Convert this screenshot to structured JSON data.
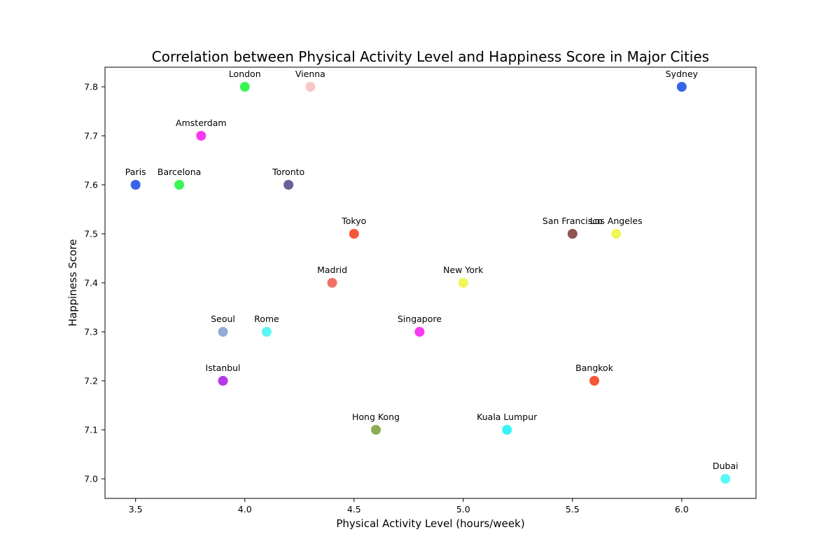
{
  "chart_data": {
    "type": "scatter",
    "title": "Correlation between Physical Activity Level and Happiness Score in Major Cities",
    "xlabel": "Physical Activity Level (hours/week)",
    "ylabel": "Happiness Score",
    "xlim": [
      3.36,
      6.34
    ],
    "ylim": [
      6.96,
      7.84
    ],
    "xticks": [
      "3.5",
      "4.0",
      "4.5",
      "5.0",
      "5.5",
      "6.0"
    ],
    "yticks": [
      "7.0",
      "7.1",
      "7.2",
      "7.3",
      "7.4",
      "7.5",
      "7.6",
      "7.7",
      "7.8"
    ],
    "grid": false,
    "points": [
      {
        "label": "Paris",
        "x": 3.5,
        "y": 7.6,
        "color": "#2e5be8"
      },
      {
        "label": "Barcelona",
        "x": 3.7,
        "y": 7.6,
        "color": "#2ef64a"
      },
      {
        "label": "Amsterdam",
        "x": 3.8,
        "y": 7.7,
        "color": "#f92ef0"
      },
      {
        "label": "Seoul",
        "x": 3.9,
        "y": 7.3,
        "color": "#8fa7d2"
      },
      {
        "label": "Istanbul",
        "x": 3.9,
        "y": 7.2,
        "color": "#b02ee6"
      },
      {
        "label": "London",
        "x": 4.0,
        "y": 7.8,
        "color": "#2ef64a"
      },
      {
        "label": "Rome",
        "x": 4.1,
        "y": 7.3,
        "color": "#52f7f2"
      },
      {
        "label": "Toronto",
        "x": 4.2,
        "y": 7.6,
        "color": "#675694"
      },
      {
        "label": "Vienna",
        "x": 4.3,
        "y": 7.8,
        "color": "#f7c4c4"
      },
      {
        "label": "Madrid",
        "x": 4.4,
        "y": 7.4,
        "color": "#f2685e"
      },
      {
        "label": "Tokyo",
        "x": 4.5,
        "y": 7.5,
        "color": "#f54e2e"
      },
      {
        "label": "Hong Kong",
        "x": 4.6,
        "y": 7.1,
        "color": "#86a94b"
      },
      {
        "label": "Singapore",
        "x": 4.8,
        "y": 7.3,
        "color": "#f92ef0"
      },
      {
        "label": "New York",
        "x": 5.0,
        "y": 7.4,
        "color": "#f0f54e"
      },
      {
        "label": "Kuala Lumpur",
        "x": 5.2,
        "y": 7.1,
        "color": "#2ef1f7"
      },
      {
        "label": "San Francisco",
        "x": 5.5,
        "y": 7.5,
        "color": "#8b4a4a"
      },
      {
        "label": "Bangkok",
        "x": 5.6,
        "y": 7.2,
        "color": "#f54e2e"
      },
      {
        "label": "Los Angeles",
        "x": 5.7,
        "y": 7.5,
        "color": "#f0f54e"
      },
      {
        "label": "Sydney",
        "x": 6.0,
        "y": 7.8,
        "color": "#2e5be8"
      },
      {
        "label": "Dubai",
        "x": 6.2,
        "y": 7.0,
        "color": "#52f7f2"
      }
    ]
  }
}
